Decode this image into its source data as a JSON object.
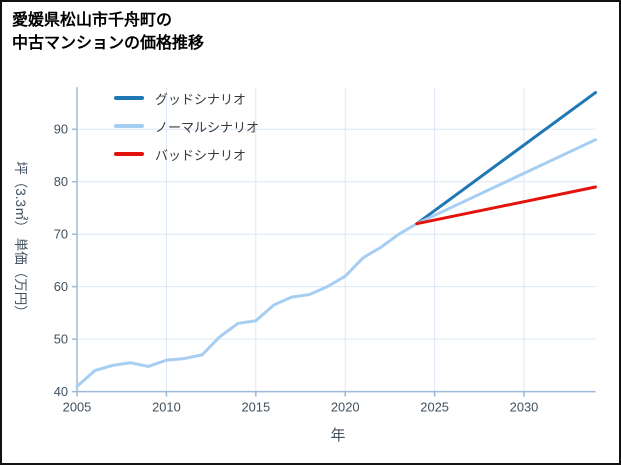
{
  "header": {
    "line1": "愛媛県松山市千舟町の",
    "line2": "中古マンションの価格推移"
  },
  "chart_data": {
    "type": "line",
    "title": "愛媛県松山市千舟町の中古マンションの価格推移",
    "xlabel": "年",
    "ylabel": "坪（3.3㎡） 単価（万円）",
    "xlim": [
      2005,
      2034
    ],
    "ylim": [
      40,
      98
    ],
    "xticks": [
      2005,
      2010,
      2015,
      2020,
      2025,
      2030
    ],
    "yticks": [
      40,
      50,
      60,
      70,
      80,
      90
    ],
    "grid": true,
    "legend_position": "top-left",
    "colors": {
      "grid": "#dbe7f5",
      "axis": "#9db9d8",
      "tick_text": "#41505f",
      "good": "#1f77b4",
      "normal": "#a6cdf2",
      "bad": "#e3120b"
    },
    "history": {
      "color": "#a6cdf2",
      "x": [
        2005,
        2006,
        2007,
        2008,
        2009,
        2010,
        2011,
        2012,
        2013,
        2014,
        2015,
        2016,
        2017,
        2018,
        2019,
        2020,
        2021,
        2022,
        2023,
        2024
      ],
      "y": [
        41,
        44,
        45,
        45.5,
        44.8,
        46,
        46.3,
        47,
        50.5,
        53,
        53.5,
        56.5,
        58,
        58.5,
        60,
        62,
        65.5,
        67.5,
        70,
        72
      ]
    },
    "scenarios": [
      {
        "key": "good",
        "label": "グッドシナリオ",
        "color": "#1f77b4",
        "x": [
          2024,
          2034
        ],
        "y": [
          72,
          97
        ]
      },
      {
        "key": "normal",
        "label": "ノーマルシナリオ",
        "color": "#a6cdf2",
        "x": [
          2024,
          2034
        ],
        "y": [
          72,
          88
        ]
      },
      {
        "key": "bad",
        "label": "バッドシナリオ",
        "color": "#e3120b",
        "x": [
          2024,
          2034
        ],
        "y": [
          72,
          79
        ]
      }
    ],
    "legend": [
      {
        "label": "グッドシナリオ",
        "color": "#1f77b4"
      },
      {
        "label": "ノーマルシナリオ",
        "color": "#a6cdf2"
      },
      {
        "label": "バッドシナリオ",
        "color": "#e3120b"
      }
    ]
  }
}
